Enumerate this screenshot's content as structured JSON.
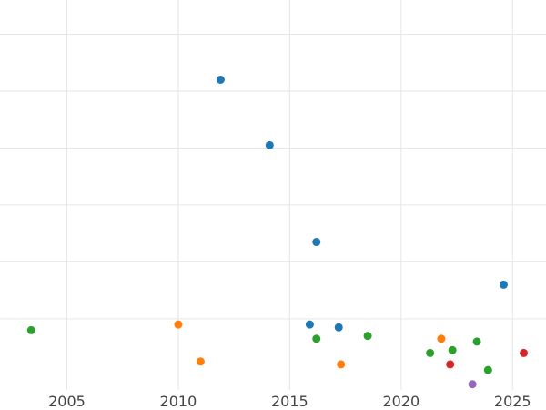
{
  "chart_data": {
    "type": "scatter",
    "title": "",
    "xlabel": "",
    "ylabel": "",
    "xlim": [
      2002,
      2026.5
    ],
    "ylim": [
      -0.25,
      6.6
    ],
    "grid": true,
    "legend": "none",
    "x_ticks": [
      2005,
      2010,
      2015,
      2020,
      2025
    ],
    "x_tick_labels": [
      "2005",
      "2010",
      "2015",
      "2020",
      "2025"
    ],
    "y_gridlines": [
      1,
      2,
      3,
      4,
      5,
      6
    ],
    "series": [
      {
        "color": "#1f77b4",
        "points": [
          {
            "x": 2011.9,
            "y": 5.2
          },
          {
            "x": 2014.1,
            "y": 4.05
          },
          {
            "x": 2016.2,
            "y": 2.35
          },
          {
            "x": 2015.9,
            "y": 0.9
          },
          {
            "x": 2017.2,
            "y": 0.85
          },
          {
            "x": 2024.6,
            "y": 1.6
          }
        ]
      },
      {
        "color": "#ff7f0e",
        "points": [
          {
            "x": 2010.0,
            "y": 0.9
          },
          {
            "x": 2011.0,
            "y": 0.25
          },
          {
            "x": 2017.3,
            "y": 0.2
          },
          {
            "x": 2021.8,
            "y": 0.65
          }
        ]
      },
      {
        "color": "#2ca02c",
        "points": [
          {
            "x": 2003.4,
            "y": 0.8
          },
          {
            "x": 2016.2,
            "y": 0.65
          },
          {
            "x": 2018.5,
            "y": 0.7
          },
          {
            "x": 2021.3,
            "y": 0.4
          },
          {
            "x": 2022.3,
            "y": 0.45
          },
          {
            "x": 2023.4,
            "y": 0.6
          },
          {
            "x": 2023.9,
            "y": 0.1
          }
        ]
      },
      {
        "color": "#d62728",
        "points": [
          {
            "x": 2022.2,
            "y": 0.2
          },
          {
            "x": 2025.5,
            "y": 0.4
          }
        ]
      },
      {
        "color": "#9467bd",
        "points": [
          {
            "x": 2023.2,
            "y": -0.15
          }
        ]
      }
    ]
  }
}
